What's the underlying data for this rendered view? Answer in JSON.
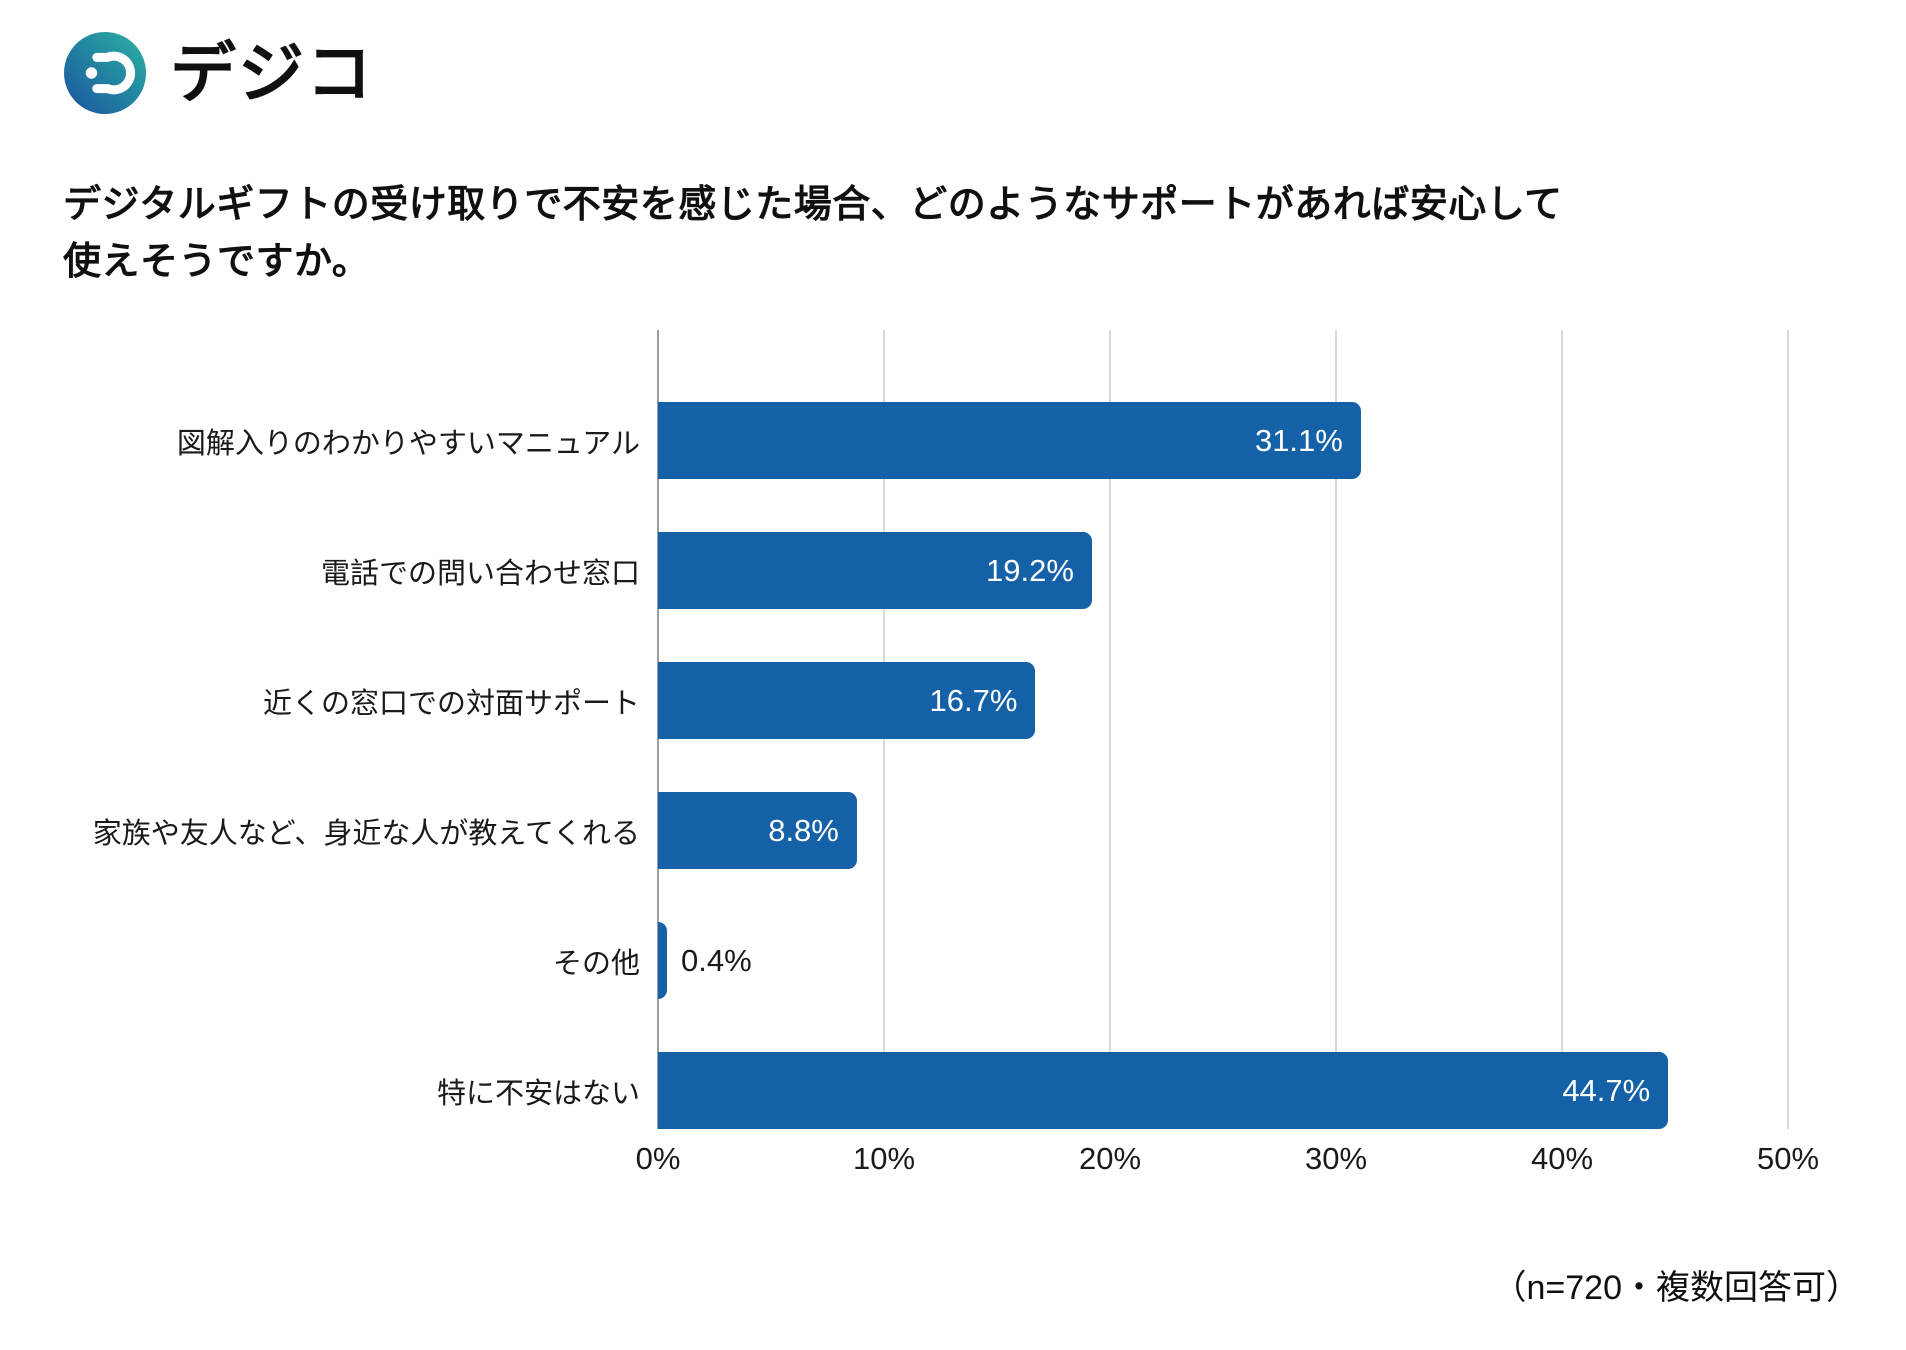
{
  "brand": {
    "name": "デジコ",
    "icon": "digico-logo-icon",
    "icon_gradient": [
      "#2bb3a2",
      "#1a53a0"
    ]
  },
  "title": {
    "line1": "デジタルギフトの受け取りで不安を感じた場合、どのようなサポートがあれば安心して",
    "line2": "使えそうですか。"
  },
  "chart_data": {
    "type": "bar",
    "orientation": "horizontal",
    "title": "デジタルギフトの受け取りで不安を感じた場合、どのようなサポートがあれば安心して使えそうですか。",
    "categories": [
      "図解入りのわかりやすいマニュアル",
      "電話での問い合わせ窓口",
      "近くの窓口での対面サポート",
      "家族や友人など、身近な人が教えてくれる",
      "その他",
      "特に不安はない"
    ],
    "values": [
      31.1,
      19.2,
      16.7,
      8.8,
      0.4,
      44.7
    ],
    "value_labels": [
      "31.1%",
      "19.2%",
      "16.7%",
      "8.8%",
      "0.4%",
      "44.7%"
    ],
    "xlabel": "",
    "ylabel": "",
    "xlim": [
      0,
      50
    ],
    "x_ticks": [
      "0%",
      "10%",
      "20%",
      "30%",
      "40%",
      "50%"
    ],
    "grid": true,
    "legend": "none",
    "bar_color": "#1561a8",
    "gridline_color": "#d9d9d9",
    "axis_line_color": "#9aa0a6",
    "value_label_color_inside": "#ffffff",
    "value_label_color_outside": "#1a1a1a"
  },
  "note": "（n=720・複数回答可）"
}
